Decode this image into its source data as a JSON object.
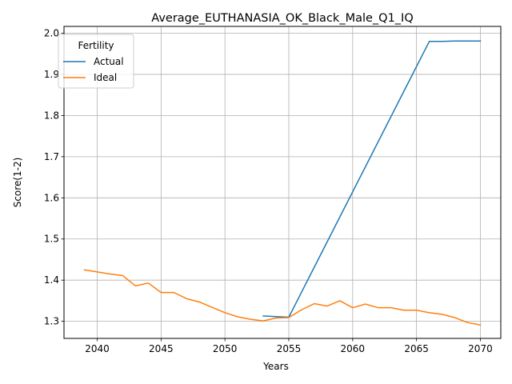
{
  "chart_data": {
    "type": "line",
    "title": "Average_EUTHANASIA_OK_Black_Male_Q1_IQ",
    "xlabel": "Years",
    "ylabel": "Score(1-2)",
    "xlim": [
      2037.4,
      2071.6
    ],
    "ylim": [
      1.2585,
      2.0165
    ],
    "xticks": [
      2040,
      2045,
      2050,
      2055,
      2060,
      2065,
      2070
    ],
    "yticks": [
      1.3,
      1.4,
      1.5,
      1.6,
      1.7,
      1.8,
      1.9,
      2.0
    ],
    "ytick_labels": [
      "1.3",
      "1.4",
      "1.5",
      "1.6",
      "1.7",
      "1.8",
      "1.9",
      "2.0"
    ],
    "grid": true,
    "legend": {
      "title": "Fertility",
      "placement": "upper-left"
    },
    "series": [
      {
        "name": "Actual",
        "color": "#1f77b4",
        "x": [
          2053,
          2055,
          2066,
          2067,
          2068,
          2069,
          2070
        ],
        "y": [
          1.313,
          1.31,
          1.98,
          1.98,
          1.981,
          1.981,
          1.981
        ]
      },
      {
        "name": "Ideal",
        "color": "#ff7f0e",
        "x": [
          2039,
          2040,
          2041,
          2042,
          2043,
          2044,
          2045,
          2046,
          2047,
          2048,
          2049,
          2050,
          2051,
          2052,
          2053,
          2054,
          2055,
          2056,
          2057,
          2058,
          2059,
          2060,
          2061,
          2062,
          2063,
          2064,
          2065,
          2066,
          2067,
          2068,
          2069,
          2070
        ],
        "y": [
          1.425,
          1.42,
          1.415,
          1.411,
          1.386,
          1.393,
          1.37,
          1.37,
          1.355,
          1.347,
          1.334,
          1.321,
          1.311,
          1.305,
          1.301,
          1.308,
          1.309,
          1.328,
          1.343,
          1.337,
          1.35,
          1.333,
          1.342,
          1.333,
          1.333,
          1.327,
          1.327,
          1.321,
          1.317,
          1.309,
          1.297,
          1.291
        ]
      }
    ]
  }
}
